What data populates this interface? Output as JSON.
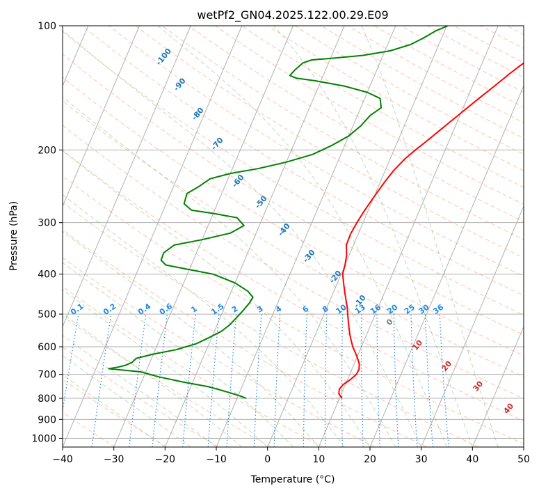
{
  "chart_data": {
    "type": "line",
    "subtype": "skew-t log-p",
    "title": "wetPf2_GN04.2025.122.00.29.E09",
    "xlabel": "Temperature (°C)",
    "ylabel": "Pressure (hPa)",
    "xlim": [
      -40,
      50
    ],
    "ylim": [
      1050,
      100
    ],
    "y_scale": "log",
    "x_ticks": [
      -40,
      -30,
      -20,
      -10,
      0,
      10,
      20,
      30,
      40,
      50
    ],
    "y_ticks": [
      100,
      200,
      300,
      400,
      500,
      600,
      700,
      800,
      900,
      1000
    ],
    "grid": true,
    "series": [
      {
        "color": "#ff0000",
        "points": [
          {
            "p": 800,
            "t": 10.5
          },
          {
            "p": 780,
            "t": 9.5
          },
          {
            "p": 760,
            "t": 9.2
          },
          {
            "p": 740,
            "t": 9.6
          },
          {
            "p": 720,
            "t": 10.6
          },
          {
            "p": 700,
            "t": 11.3
          },
          {
            "p": 680,
            "t": 11.4
          },
          {
            "p": 660,
            "t": 11.0
          },
          {
            "p": 640,
            "t": 10.2
          },
          {
            "p": 620,
            "t": 9.3
          },
          {
            "p": 600,
            "t": 8.3
          },
          {
            "p": 580,
            "t": 7.5
          },
          {
            "p": 560,
            "t": 6.7
          },
          {
            "p": 540,
            "t": 6.0
          },
          {
            "p": 520,
            "t": 5.3
          },
          {
            "p": 500,
            "t": 4.6
          },
          {
            "p": 480,
            "t": 3.9
          },
          {
            "p": 460,
            "t": 3.0
          },
          {
            "p": 440,
            "t": 2.1
          },
          {
            "p": 420,
            "t": 1.2
          },
          {
            "p": 400,
            "t": 0.3
          },
          {
            "p": 380,
            "t": 0.0
          },
          {
            "p": 360,
            "t": -0.5
          },
          {
            "p": 340,
            "t": -1.4
          },
          {
            "p": 320,
            "t": -1.5
          },
          {
            "p": 300,
            "t": -1.2
          },
          {
            "p": 280,
            "t": -0.7
          },
          {
            "p": 260,
            "t": 0.0
          },
          {
            "p": 240,
            "t": 0.8
          },
          {
            "p": 225,
            "t": 1.6
          },
          {
            "p": 210,
            "t": 2.9
          },
          {
            "p": 200,
            "t": 4.2
          },
          {
            "p": 190,
            "t": 5.7
          },
          {
            "p": 180,
            "t": 7.2
          },
          {
            "p": 170,
            "t": 8.8
          },
          {
            "p": 160,
            "t": 10.5
          },
          {
            "p": 150,
            "t": 12.3
          },
          {
            "p": 140,
            "t": 14.3
          },
          {
            "p": 130,
            "t": 16.4
          },
          {
            "p": 125,
            "t": 17.6
          },
          {
            "p": 120,
            "t": 19.0
          },
          {
            "p": 115,
            "t": 21.0
          },
          {
            "p": 110,
            "t": 23.2
          },
          {
            "p": 105,
            "t": 24.9
          },
          {
            "p": 100,
            "t": 26.4
          }
        ]
      },
      {
        "color": "#008000",
        "points": [
          {
            "p": 800,
            "t": -8.2
          },
          {
            "p": 790,
            "t": -9.5
          },
          {
            "p": 770,
            "t": -12.8
          },
          {
            "p": 750,
            "t": -16.5
          },
          {
            "p": 730,
            "t": -22.0
          },
          {
            "p": 710,
            "t": -27.0
          },
          {
            "p": 690,
            "t": -31.0
          },
          {
            "p": 678,
            "t": -37.5
          },
          {
            "p": 672,
            "t": -35.8
          },
          {
            "p": 665,
            "t": -34.5
          },
          {
            "p": 655,
            "t": -33.5
          },
          {
            "p": 640,
            "t": -33.0
          },
          {
            "p": 625,
            "t": -30.0
          },
          {
            "p": 610,
            "t": -26.0
          },
          {
            "p": 590,
            "t": -22.5
          },
          {
            "p": 570,
            "t": -20.5
          },
          {
            "p": 550,
            "t": -18.6
          },
          {
            "p": 530,
            "t": -17.5
          },
          {
            "p": 510,
            "t": -16.8
          },
          {
            "p": 490,
            "t": -16.1
          },
          {
            "p": 470,
            "t": -15.5
          },
          {
            "p": 455,
            "t": -15.3
          },
          {
            "p": 440,
            "t": -16.8
          },
          {
            "p": 420,
            "t": -20.0
          },
          {
            "p": 400,
            "t": -25.0
          },
          {
            "p": 388,
            "t": -31.0
          },
          {
            "p": 380,
            "t": -35.0
          },
          {
            "p": 370,
            "t": -36.3
          },
          {
            "p": 355,
            "t": -36.4
          },
          {
            "p": 340,
            "t": -35.0
          },
          {
            "p": 330,
            "t": -30.0
          },
          {
            "p": 318,
            "t": -25.0
          },
          {
            "p": 305,
            "t": -23.0
          },
          {
            "p": 292,
            "t": -25.0
          },
          {
            "p": 285,
            "t": -30.0
          },
          {
            "p": 280,
            "t": -34.5
          },
          {
            "p": 270,
            "t": -36.5
          },
          {
            "p": 255,
            "t": -36.8
          },
          {
            "p": 245,
            "t": -35.0
          },
          {
            "p": 235,
            "t": -33.5
          },
          {
            "p": 228,
            "t": -30.0
          },
          {
            "p": 222,
            "t": -25.0
          },
          {
            "p": 214,
            "t": -20.0
          },
          {
            "p": 205,
            "t": -15.5
          },
          {
            "p": 195,
            "t": -12.5
          },
          {
            "p": 185,
            "t": -10.0
          },
          {
            "p": 175,
            "t": -8.5
          },
          {
            "p": 165,
            "t": -7.5
          },
          {
            "p": 158,
            "t": -6.0
          },
          {
            "p": 150,
            "t": -7.0
          },
          {
            "p": 145,
            "t": -10.0
          },
          {
            "p": 140,
            "t": -15.0
          },
          {
            "p": 136,
            "t": -21.0
          },
          {
            "p": 134,
            "t": -25.0
          },
          {
            "p": 132,
            "t": -26.5
          },
          {
            "p": 128,
            "t": -26.0
          },
          {
            "p": 123,
            "t": -25.0
          },
          {
            "p": 121,
            "t": -23.5
          },
          {
            "p": 120,
            "t": -20.0
          },
          {
            "p": 118,
            "t": -14.0
          },
          {
            "p": 115,
            "t": -9.0
          },
          {
            "p": 111,
            "t": -5.5
          },
          {
            "p": 107,
            "t": -3.5
          },
          {
            "p": 103,
            "t": -1.8
          },
          {
            "p": 100,
            "t": 0.2
          }
        ]
      }
    ],
    "dry_adiabat_labels": [
      "-100",
      "-90",
      "-80",
      "-70",
      "-60",
      "-50",
      "-40",
      "-30",
      "-20",
      "-10"
    ],
    "moist_adiabat_labels": [
      "0",
      "10",
      "20",
      "30",
      "40"
    ],
    "mixing_ratio_labels": [
      "0.1",
      "0.2",
      "0.4",
      "0.6",
      "1",
      "1.5",
      "2",
      "3",
      "4",
      "6",
      "8",
      "10",
      "13",
      "16",
      "20",
      "25",
      "30",
      "36"
    ],
    "colors": {
      "temperature": "#ff0000",
      "dewpoint": "#008000",
      "dry_adiabat": "#ff7f50",
      "moist_adiabat": "#2ca02c",
      "mixing_ratio": "#1e88e5",
      "isotherm": "#808080"
    }
  }
}
